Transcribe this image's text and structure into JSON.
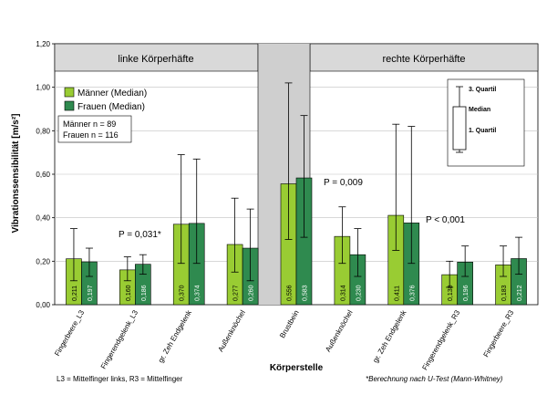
{
  "chart_data": {
    "type": "bar",
    "ylabel": "Vibrationssensibilität [m/s²]",
    "xlabel": "Körperstelle",
    "ylim": [
      0,
      1.2
    ],
    "yticks": [
      "0,00",
      "0,20",
      "0,40",
      "0,60",
      "0,80",
      "1,00",
      "1,20"
    ],
    "categories": [
      "Fingerbeere_L3",
      "Fingerendgelenk_L3",
      "gr. Zeh Endgelenk",
      "Außenknöchel",
      "Brustbein",
      "Außenknöchel",
      "gr. Zeh Endgelenk",
      "Fingerendgelenk_R3",
      "Fingerbeere_R3"
    ],
    "series": [
      {
        "name": "Männer (Median)",
        "color": "#99cc33",
        "values": [
          0.211,
          0.16,
          0.37,
          0.277,
          0.556,
          0.314,
          0.411,
          0.138,
          0.183
        ],
        "labels": [
          "0,211",
          "0,160",
          "0,370",
          "0,277",
          "0,556",
          "0,314",
          "0,411",
          "0,138",
          "0,183"
        ],
        "q1": [
          0.11,
          0.11,
          0.19,
          0.15,
          0.3,
          0.19,
          0.25,
          0.08,
          0.13
        ],
        "q3": [
          0.35,
          0.22,
          0.69,
          0.49,
          1.02,
          0.45,
          0.83,
          0.2,
          0.27
        ]
      },
      {
        "name": "Frauen (Median)",
        "color": "#2f8a4f",
        "values": [
          0.197,
          0.186,
          0.374,
          0.26,
          0.583,
          0.23,
          0.376,
          0.196,
          0.212
        ],
        "labels": [
          "0,197",
          "0,186",
          "0,374",
          "0,260",
          "0,583",
          "0,230",
          "0,376",
          "0,196",
          "0,212"
        ],
        "q1": [
          0.13,
          0.14,
          0.19,
          0.11,
          0.31,
          0.13,
          0.19,
          0.13,
          0.14
        ],
        "q3": [
          0.26,
          0.23,
          0.67,
          0.44,
          0.87,
          0.35,
          0.82,
          0.27,
          0.31
        ]
      }
    ],
    "sections": {
      "left": "linke Körperhäfte",
      "right": "rechte Körperhäfte"
    },
    "legend": {
      "placement": "top-left",
      "entries": [
        "Männer (Median)",
        "Frauen (Median)"
      ]
    },
    "counts": {
      "men": "Männer n = 89",
      "women": "Frauen n = 116"
    },
    "pvalues": [
      "P = 0,031*",
      "P = 0,009",
      "P < 0,001"
    ],
    "quartile_key": {
      "q3": "3. Quartil",
      "median": "Median",
      "q1": "1. Quartil"
    },
    "footnotes": {
      "left": "L3 = Mittelfinger links, R3 = Mittelfinger",
      "right": "*Berechnung nach U-Test (Mann-Whitney)"
    },
    "colors": {
      "plot_bg": "#ffffff",
      "header_bg": "#d9d9d9",
      "grid": "#c0c0c0",
      "divider": "#c8c8c8"
    }
  }
}
